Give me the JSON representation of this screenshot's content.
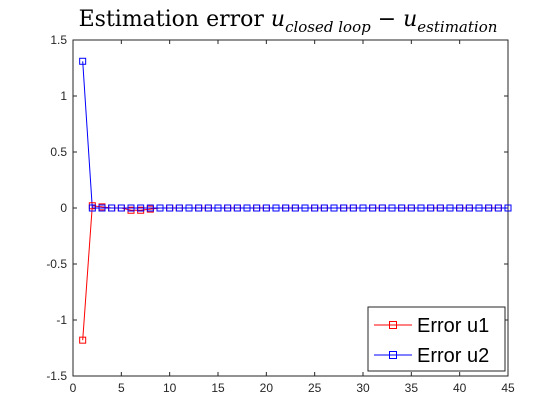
{
  "chart_data": {
    "type": "line",
    "title": {
      "prefix": "Estimation error ",
      "var1": "u",
      "sub1": "closed loop",
      "minus": " − ",
      "var2": "u",
      "sub2": "estimation"
    },
    "xlabel": "",
    "ylabel": "",
    "xlim": [
      0,
      45
    ],
    "ylim": [
      -1.5,
      1.5
    ],
    "xticks": [
      0,
      5,
      10,
      15,
      20,
      25,
      30,
      35,
      40,
      45
    ],
    "yticks": [
      1.5,
      1,
      0.5,
      0,
      -0.5,
      -1,
      -1.5
    ],
    "ytick_labels": [
      "1.5",
      "1",
      "0.5",
      "0",
      "-0.5",
      "-1",
      "-1.5"
    ],
    "grid": false,
    "legend_position": "bottom-right",
    "series": [
      {
        "name": "Error u1",
        "color": "#ff0000",
        "marker": "square",
        "x": [
          1,
          2,
          3,
          4,
          5,
          6,
          7,
          8,
          9,
          10,
          11,
          12,
          13,
          14,
          15,
          16,
          17,
          18,
          19,
          20,
          21,
          22,
          23,
          24,
          25,
          26,
          27,
          28,
          29,
          30,
          31,
          32,
          33,
          34,
          35,
          36,
          37,
          38,
          39,
          40,
          41,
          42,
          43,
          44,
          45
        ],
        "y": [
          -1.18,
          0.02,
          0.01,
          0,
          0,
          -0.02,
          -0.02,
          -0.01,
          0,
          0,
          0,
          0,
          0,
          0,
          0,
          0,
          0,
          0,
          0,
          0,
          0,
          0,
          0,
          0,
          0,
          0,
          0,
          0,
          0,
          0,
          0,
          0,
          0,
          0,
          0,
          0,
          0,
          0,
          0,
          0,
          0,
          0,
          0,
          0,
          0
        ]
      },
      {
        "name": "Error u2",
        "color": "#0000ff",
        "marker": "square",
        "x": [
          1,
          2,
          3,
          4,
          5,
          6,
          7,
          8,
          9,
          10,
          11,
          12,
          13,
          14,
          15,
          16,
          17,
          18,
          19,
          20,
          21,
          22,
          23,
          24,
          25,
          26,
          27,
          28,
          29,
          30,
          31,
          32,
          33,
          34,
          35,
          36,
          37,
          38,
          39,
          40,
          41,
          42,
          43,
          44,
          45
        ],
        "y": [
          1.31,
          0,
          0,
          0,
          0,
          0,
          0,
          0,
          0,
          0,
          0,
          0,
          0,
          0,
          0,
          0,
          0,
          0,
          0,
          0,
          0,
          0,
          0,
          0,
          0,
          0,
          0,
          0,
          0,
          0,
          0,
          0,
          0,
          0,
          0,
          0,
          0,
          0,
          0,
          0,
          0,
          0,
          0,
          0,
          0
        ]
      }
    ]
  }
}
